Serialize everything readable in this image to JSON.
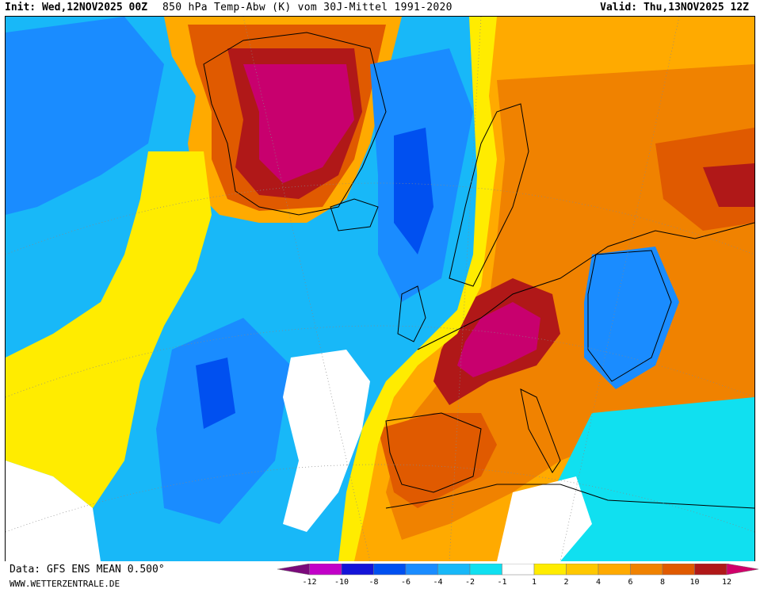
{
  "header": {
    "init_label": "Init:",
    "init_value": "Wed,12NOV2025 00Z",
    "title": "850 hPa Temp-Abw (K) vom 30J-Mittel 1991-2020",
    "valid_label": "Valid:",
    "valid_value": "Thu,13NOV2025 12Z"
  },
  "footer": {
    "data_source": "Data: GFS ENS MEAN 0.500°",
    "website": "WWW.WETTERZENTRALE.DE"
  },
  "legend": {
    "ticks": [
      "-12",
      "-10",
      "-8",
      "-6",
      "-4",
      "-2",
      "-1",
      "1",
      "2",
      "4",
      "6",
      "8",
      "10",
      "12"
    ],
    "colors": [
      "#7a0a7a",
      "#c200c8",
      "#1414d8",
      "#0050f0",
      "#1a8cff",
      "#18b8f8",
      "#10e0f0",
      "#ffffff",
      "#ffec00",
      "#ffc800",
      "#ffaa00",
      "#f08200",
      "#e05a00",
      "#b01818",
      "#d0006a"
    ]
  },
  "map": {
    "colors": {
      "anomaly_max": "#c8006e",
      "anomaly_high": "#b01818",
      "anomaly_warm": "#e05a00",
      "anomaly_orange": "#f08200",
      "anomaly_amber": "#ffaa00",
      "anomaly_gold": "#ffc800",
      "anomaly_yellow": "#ffec00",
      "anomaly_neutral": "#ffffff",
      "anomaly_cyan": "#10e0f0",
      "anomaly_sky": "#18b8f8",
      "anomaly_blue": "#1a8cff",
      "anomaly_deep": "#0050f0",
      "coastline": "#000000"
    }
  }
}
